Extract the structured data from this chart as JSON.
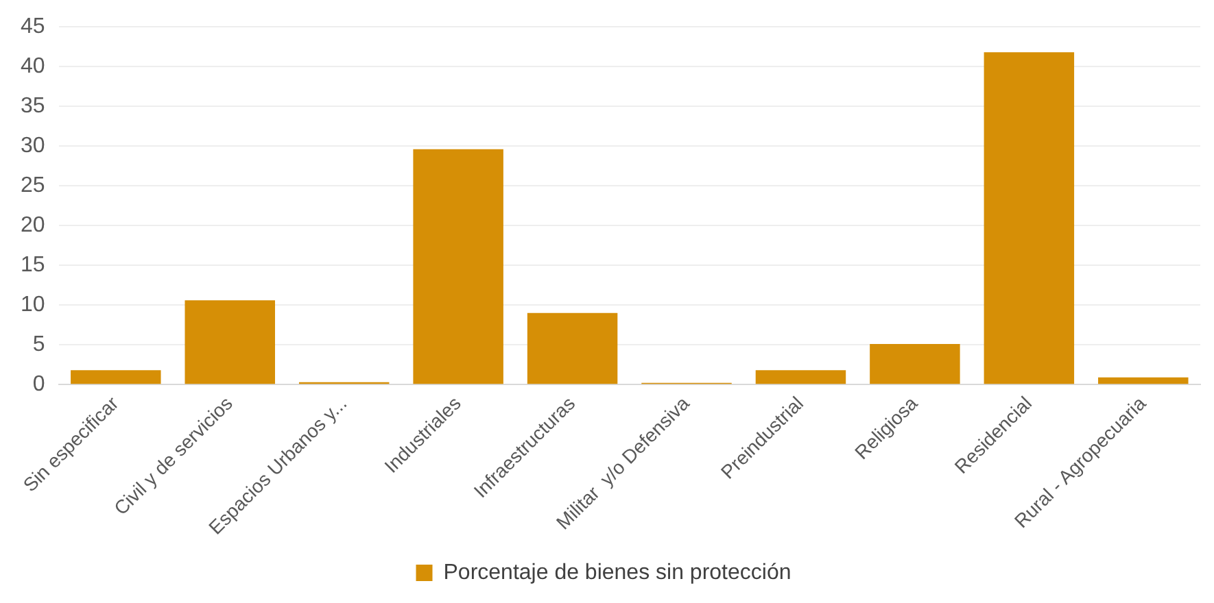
{
  "chart_data": {
    "type": "bar",
    "categories": [
      "Sin especificar",
      "Civil y de servicios",
      "Espacios Urbanos y...",
      "Industriales",
      "Infraestructuras",
      "Militar  y/o Defensiva",
      "Preindustrial",
      "Religiosa",
      "Residencial",
      "Rural - Agropecuaria"
    ],
    "series": [
      {
        "name": "Porcentaje de bienes sin protección",
        "color": "#d68f06",
        "values": [
          1.8,
          10.6,
          0.3,
          29.6,
          9.0,
          0.2,
          1.8,
          5.1,
          41.8,
          0.9
        ]
      }
    ],
    "ylim": [
      0,
      45
    ],
    "yticks": [
      0,
      5,
      10,
      15,
      20,
      25,
      30,
      35,
      40,
      45
    ],
    "grid": "y",
    "legend": "bottom"
  }
}
